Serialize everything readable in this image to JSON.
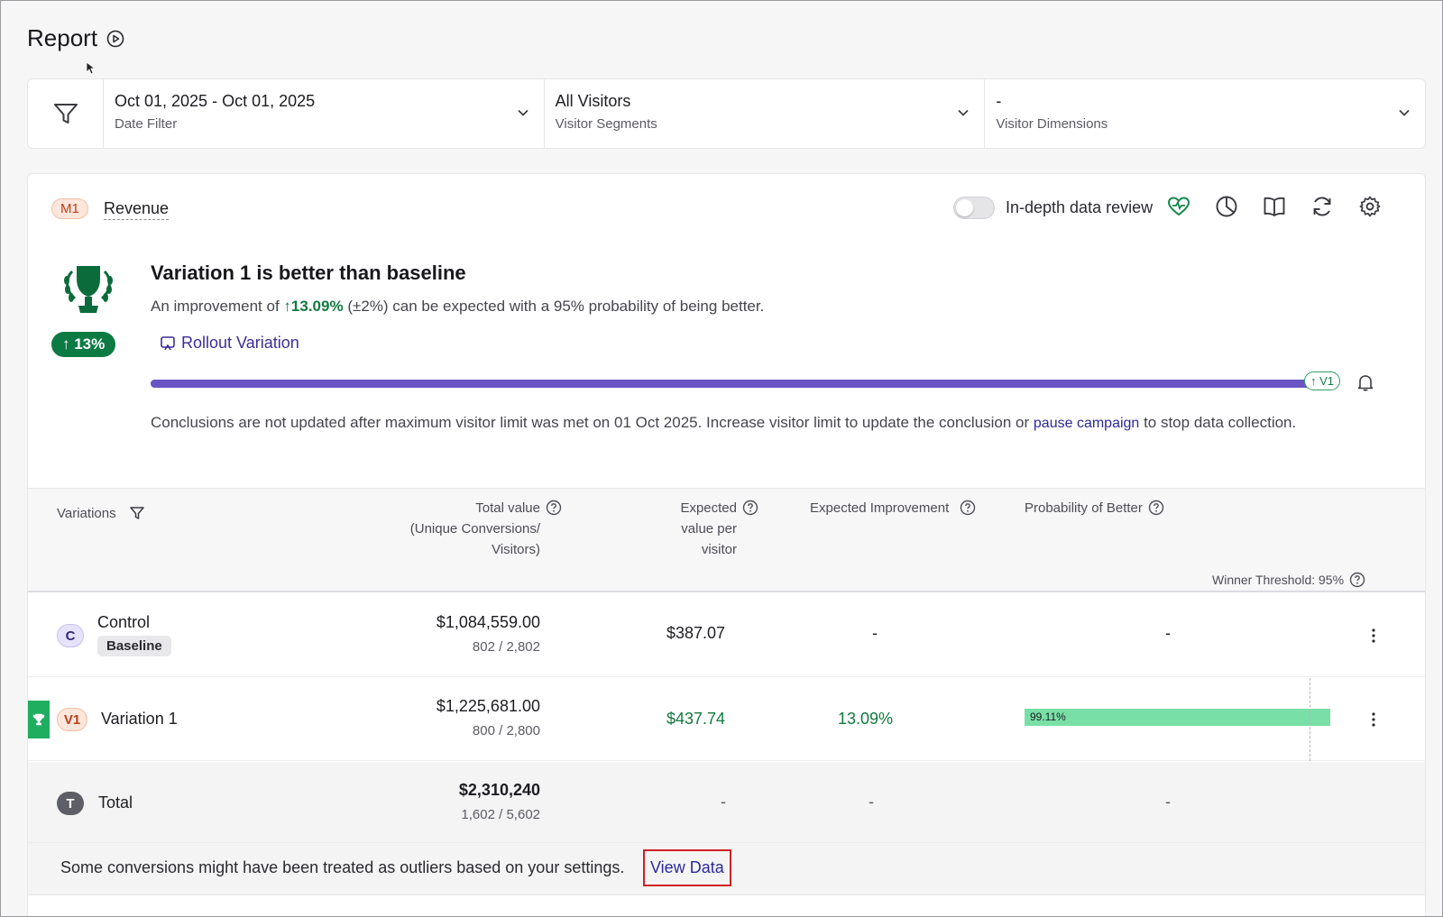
{
  "page": {
    "title": "Report"
  },
  "filters": [
    {
      "value": "Oct 01, 2025 - Oct 01, 2025",
      "label": "Date Filter"
    },
    {
      "value": "All Visitors",
      "label": "Visitor Segments"
    },
    {
      "value": "-",
      "label": "Visitor Dimensions"
    }
  ],
  "metric": {
    "badge": "M1",
    "name": "Revenue",
    "toggle_label": "In-depth data review",
    "toggle_on": false
  },
  "toolbar": {
    "icons": [
      "heart-pulse-icon",
      "pie-chart-icon",
      "book-icon",
      "refresh-icon",
      "settings-gear-icon"
    ]
  },
  "summary": {
    "headline": "Variation 1 is better than baseline",
    "sentence_prefix": "An improvement of",
    "improvement": "↑13.09%",
    "sentence_suffix": "(±2%) can be expected with a 95% probability of being better.",
    "pill": "↑ 13%",
    "rollout_label": "Rollout Variation",
    "progress_fraction": 1.0,
    "progress_marker": "↑ V1",
    "conclusion_prefix": "Conclusions are not updated after maximum visitor limit was met on 01 Oct 2025. Increase visitor limit to update the conclusion or",
    "conclusion_link": "pause campaign",
    "conclusion_suffix": "to stop data collection."
  },
  "table": {
    "headers": {
      "variations": "Variations",
      "total_value_1": "Total value",
      "total_value_2": "(Unique Conversions/",
      "total_value_3": "Visitors)",
      "expected_1": "Expected",
      "expected_2": "value per",
      "expected_3": "visitor",
      "expected_improvement": "Expected Improvement",
      "probability": "Probability of Better"
    },
    "threshold": "Winner Threshold: 95%",
    "rows": [
      {
        "badge": "C",
        "name": "Control",
        "chip": "Baseline",
        "total": "$1,084,559.00",
        "ratio": "802 / 2,802",
        "evpv": "$387.07",
        "improvement": "-",
        "probability": "-"
      },
      {
        "badge": "V1",
        "name": "Variation 1",
        "total": "$1,225,681.00",
        "ratio": "800 / 2,800",
        "evpv": "$437.74",
        "improvement": "13.09%",
        "probability_label": "99.11%",
        "probability_value": 0.9911
      },
      {
        "badge": "T",
        "name": "Total",
        "total": "$2,310,240",
        "ratio": "1,602 / 5,602",
        "evpv": "-",
        "improvement": "-",
        "probability": "-"
      }
    ]
  },
  "outlier": {
    "text": "Some conversions might have been treated as outliers based on your settings.",
    "link": "View Data"
  },
  "colors": {
    "accent": "#6a55c4",
    "winner": "#0c7a43",
    "probability_bar": "#78e0a6",
    "highlight": "#d21f25"
  }
}
